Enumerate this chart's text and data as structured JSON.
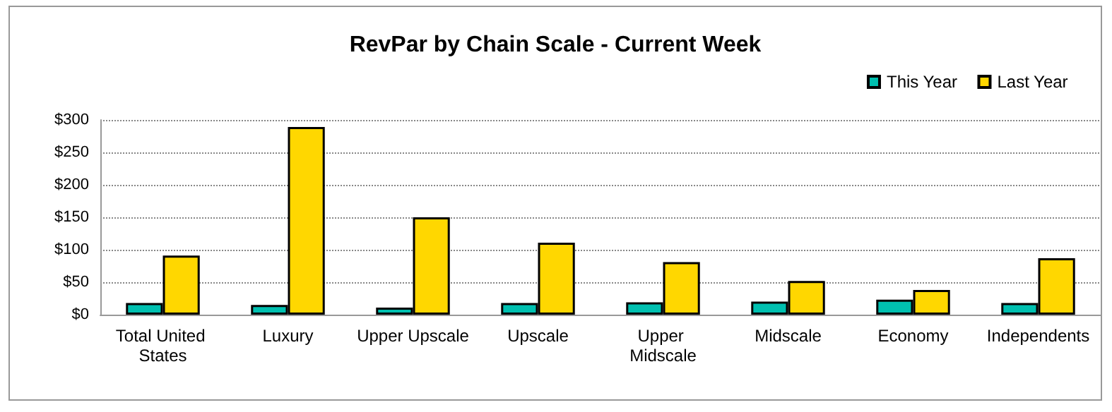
{
  "chart_data": {
    "type": "bar",
    "title": "RevPar by Chain Scale - Current Week",
    "categories": [
      "Total United States",
      "Luxury",
      "Upper Upscale",
      "Upscale",
      "Upper Midscale",
      "Midscale",
      "Economy",
      "Independents"
    ],
    "series": [
      {
        "name": "This Year",
        "color": "#00c0b0",
        "values": [
          18,
          15,
          11,
          18,
          19,
          20,
          23,
          18
        ]
      },
      {
        "name": "Last Year",
        "color": "#ffd700",
        "values": [
          91,
          289,
          150,
          111,
          81,
          52,
          38,
          87
        ]
      }
    ],
    "ylim": [
      0,
      300
    ],
    "yticks": [
      {
        "value": 0,
        "label": "$0"
      },
      {
        "value": 50,
        "label": "$50"
      },
      {
        "value": 100,
        "label": "$100"
      },
      {
        "value": 150,
        "label": "$150"
      },
      {
        "value": 200,
        "label": "$200"
      },
      {
        "value": 250,
        "label": "$250"
      },
      {
        "value": 300,
        "label": "$300"
      }
    ],
    "grid": "y",
    "legend": "top right"
  }
}
